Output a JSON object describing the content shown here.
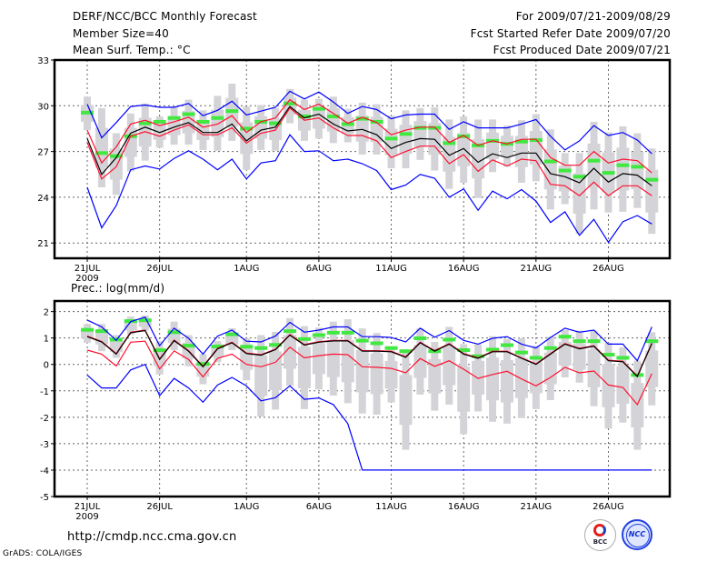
{
  "header": {
    "title": "DERF/NCC/BCC Monthly Forecast",
    "member_size": "Member Size=40",
    "period": "For 2009/07/21-2009/08/29",
    "started": "Fcst Started Refer Date 2009/07/20",
    "produced": "Fcst Produced Date 2009/07/21"
  },
  "footer": {
    "url": "http://cmdp.ncc.cma.gov.cn",
    "grads": "GrADS: COLA/IGES",
    "logo_left": "BCC",
    "logo_right": "NCC"
  },
  "colors": {
    "mean": "#000000",
    "spread": "#ff1030",
    "extreme": "#0000ff",
    "marker": "#40e840",
    "range": "#d4d4d8"
  },
  "chart_data": [
    {
      "type": "line",
      "title": "Mean Surf. Temp.: °C",
      "ylim": [
        20,
        33
      ],
      "yticks": [
        21,
        24,
        27,
        30,
        33
      ],
      "xticks": [
        {
          "day": 0,
          "label": "21JUL"
        },
        {
          "day": 5,
          "label": "26JUL"
        },
        {
          "day": 11,
          "label": "1AUG"
        },
        {
          "day": 16,
          "label": "6AUG"
        },
        {
          "day": 21,
          "label": "11AUG"
        },
        {
          "day": 26,
          "label": "16AUG"
        },
        {
          "day": 31,
          "label": "21AUG"
        },
        {
          "day": 36,
          "label": "26AUG"
        }
      ],
      "year_label": "2009",
      "grid": true,
      "n_days": 40,
      "series": [
        {
          "name": "mean",
          "color": "#000000",
          "values": [
            27.85,
            25.5,
            26.6,
            28.2,
            28.6,
            28.25,
            28.6,
            28.9,
            28.25,
            28.25,
            28.8,
            27.7,
            28.4,
            28.6,
            29.95,
            29.2,
            29.45,
            28.8,
            28.35,
            28.45,
            28.1,
            27.2,
            27.6,
            27.85,
            27.8,
            26.75,
            27.2,
            26.3,
            26.85,
            26.6,
            26.9,
            26.9,
            25.55,
            25.35,
            24.95,
            25.9,
            25.0,
            25.55,
            25.45,
            24.75
          ]
        },
        {
          "name": "upper",
          "color": "#ff1030",
          "values": [
            28.4,
            26.25,
            27.3,
            28.8,
            29.05,
            28.7,
            28.95,
            29.25,
            28.6,
            28.8,
            29.35,
            28.25,
            28.95,
            29.2,
            30.4,
            29.75,
            30.1,
            29.5,
            28.85,
            29.25,
            28.9,
            28.1,
            28.4,
            28.6,
            28.6,
            27.6,
            28.05,
            27.4,
            27.7,
            27.5,
            27.8,
            27.8,
            26.6,
            26.1,
            26.1,
            27.0,
            26.25,
            26.5,
            26.4,
            25.6
          ]
        },
        {
          "name": "lower",
          "color": "#ff1030",
          "values": [
            27.6,
            25.2,
            26.0,
            28.0,
            28.3,
            28.0,
            28.4,
            28.75,
            28.1,
            28.1,
            28.55,
            27.55,
            28.2,
            28.4,
            29.85,
            29.05,
            29.2,
            28.55,
            28.05,
            28.05,
            27.7,
            26.6,
            27.0,
            27.35,
            27.35,
            26.2,
            26.8,
            25.7,
            26.45,
            26.05,
            26.5,
            26.4,
            24.85,
            24.75,
            24.1,
            25.0,
            24.1,
            24.75,
            24.75,
            24.1
          ]
        },
        {
          "name": "max",
          "color": "#0000ff",
          "values": [
            30.1,
            27.9,
            28.9,
            29.95,
            30.05,
            29.9,
            29.9,
            30.15,
            29.35,
            29.7,
            30.3,
            29.4,
            29.65,
            29.9,
            30.95,
            30.45,
            30.9,
            30.25,
            29.5,
            29.95,
            29.75,
            29.15,
            29.4,
            29.45,
            29.45,
            28.45,
            28.95,
            28.55,
            28.55,
            28.55,
            28.8,
            29.1,
            28.0,
            27.1,
            27.7,
            28.7,
            28.05,
            28.25,
            27.75,
            26.85
          ]
        },
        {
          "name": "min",
          "color": "#0000ff",
          "values": [
            24.65,
            22.0,
            23.45,
            25.8,
            26.05,
            25.85,
            26.55,
            27.05,
            26.5,
            25.8,
            26.5,
            25.2,
            26.25,
            26.4,
            28.1,
            27.0,
            27.05,
            26.4,
            26.5,
            26.2,
            25.75,
            24.5,
            24.8,
            25.5,
            25.25,
            24.0,
            24.55,
            23.15,
            24.4,
            23.9,
            24.5,
            23.75,
            22.35,
            23.05,
            21.5,
            22.55,
            21.05,
            22.4,
            22.8,
            22.25
          ]
        }
      ],
      "markers": [
        29.55,
        26.9,
        26.7,
        28.0,
        28.85,
        28.95,
        29.2,
        29.45,
        28.95,
        29.2,
        29.65,
        28.5,
        28.95,
        28.85,
        30.15,
        29.3,
        29.8,
        29.3,
        28.8,
        29.15,
        28.95,
        27.85,
        28.15,
        28.55,
        28.55,
        27.55,
        28.0,
        27.4,
        27.7,
        27.5,
        27.65,
        27.75,
        26.35,
        25.75,
        25.35,
        26.4,
        25.6,
        26.1,
        26.0,
        25.15
      ],
      "range_high": [
        30.6,
        29.85,
        28.2,
        29.5,
        30.15,
        29.3,
        29.95,
        30.4,
        29.7,
        30.65,
        31.45,
        29.95,
        30.05,
        29.85,
        31.1,
        30.4,
        30.45,
        30.6,
        29.8,
        30.2,
        30.1,
        29.35,
        29.7,
        29.85,
        29.9,
        29.1,
        29.3,
        29.1,
        29.1,
        28.7,
        29.05,
        29.45,
        28.45,
        26.9,
        26.9,
        28.95,
        28.25,
        28.65,
        28.2,
        27.2
      ],
      "range_low": [
        28.4,
        24.65,
        24.15,
        25.7,
        26.4,
        27.25,
        27.45,
        27.45,
        27.1,
        27.05,
        27.7,
        25.8,
        27.1,
        27.05,
        28.85,
        27.7,
        27.85,
        27.55,
        27.6,
        26.8,
        26.8,
        25.9,
        25.9,
        26.45,
        25.75,
        24.55,
        24.95,
        23.95,
        25.65,
        26.0,
        24.95,
        25.05,
        23.2,
        23.55,
        21.6,
        23.2,
        23.0,
        23.05,
        23.3,
        21.6
      ]
    },
    {
      "type": "line",
      "title": "Prec.: log(mm/d)",
      "ylim": [
        -5,
        2.4
      ],
      "yticks": [
        -5,
        -4,
        -3,
        -2,
        -1,
        0,
        1,
        2
      ],
      "xticks": [
        {
          "day": 0,
          "label": "21JUL"
        },
        {
          "day": 5,
          "label": "26JUL"
        },
        {
          "day": 11,
          "label": "1AUG"
        },
        {
          "day": 16,
          "label": "6AUG"
        },
        {
          "day": 21,
          "label": "11AUG"
        },
        {
          "day": 26,
          "label": "16AUG"
        },
        {
          "day": 31,
          "label": "21AUG"
        },
        {
          "day": 36,
          "label": "26AUG"
        }
      ],
      "year_label": "2009",
      "grid": true,
      "n_days": 40,
      "series": [
        {
          "name": "upper",
          "color": "#ff1030",
          "values": [
            1.07,
            0.87,
            0.41,
            1.22,
            1.3,
            0.21,
            0.92,
            0.52,
            -0.07,
            0.61,
            0.84,
            0.43,
            0.37,
            0.58,
            1.13,
            0.75,
            0.86,
            0.91,
            0.91,
            0.52,
            0.52,
            0.5,
            0.29,
            0.84,
            0.52,
            0.79,
            0.41,
            0.25,
            0.5,
            0.5,
            0.25,
            0.02,
            0.41,
            0.79,
            0.61,
            0.71,
            0.16,
            0.12,
            -0.44,
            0.81
          ]
        },
        {
          "name": "mean",
          "color": "#000000",
          "values": [
            1.05,
            0.85,
            0.39,
            1.2,
            1.28,
            0.19,
            0.9,
            0.5,
            -0.09,
            0.59,
            0.82,
            0.41,
            0.35,
            0.56,
            1.11,
            0.73,
            0.84,
            0.89,
            0.89,
            0.5,
            0.5,
            0.48,
            0.27,
            0.82,
            0.5,
            0.77,
            0.39,
            0.23,
            0.48,
            0.48,
            0.23,
            0.0,
            0.39,
            0.77,
            0.59,
            0.69,
            0.14,
            0.1,
            -0.46,
            0.79
          ]
        },
        {
          "name": "lower",
          "color": "#ff1030",
          "values": [
            0.54,
            0.39,
            -0.06,
            0.84,
            0.88,
            -0.17,
            0.51,
            0.19,
            -0.47,
            0.23,
            0.39,
            0.0,
            -0.09,
            0.08,
            0.65,
            0.25,
            0.33,
            0.39,
            0.37,
            -0.09,
            -0.11,
            -0.15,
            -0.32,
            0.22,
            -0.07,
            0.14,
            -0.18,
            -0.53,
            -0.38,
            -0.26,
            -0.55,
            -0.81,
            -0.49,
            -0.11,
            -0.32,
            -0.25,
            -0.78,
            -0.87,
            -1.52,
            -0.35
          ]
        },
        {
          "name": "max",
          "color": "#0000ff",
          "values": [
            1.68,
            1.42,
            0.91,
            1.62,
            1.79,
            0.71,
            1.37,
            0.99,
            0.39,
            1.07,
            1.3,
            0.88,
            0.85,
            1.07,
            1.59,
            1.22,
            1.3,
            1.42,
            1.42,
            1.05,
            1.05,
            1.02,
            0.85,
            1.37,
            1.03,
            1.28,
            0.91,
            0.77,
            0.99,
            1.05,
            0.77,
            0.62,
            1.02,
            1.37,
            1.22,
            1.3,
            0.77,
            0.77,
            0.14,
            1.42
          ]
        },
        {
          "name": "min",
          "color": "#0000ff",
          "values": [
            -0.4,
            -0.89,
            -0.89,
            -0.21,
            0.0,
            -1.18,
            -0.53,
            -0.89,
            -1.43,
            -0.78,
            -0.49,
            -0.81,
            -1.38,
            -1.26,
            -0.81,
            -1.32,
            -1.27,
            -1.52,
            -2.24,
            -4,
            -4,
            -4,
            -4,
            -4,
            -4,
            -4,
            -4,
            -4,
            -4,
            -4,
            -4,
            -4,
            -4,
            -4,
            -4,
            -4,
            -4,
            -4,
            -4,
            -4
          ]
        }
      ],
      "markers": [
        1.31,
        1.26,
        0.94,
        1.64,
        1.67,
        0.54,
        1.22,
        0.71,
        0.02,
        0.68,
        1.14,
        0.67,
        0.62,
        0.74,
        1.26,
        0.96,
        1.11,
        1.2,
        1.2,
        0.9,
        0.8,
        0.62,
        0.5,
        0.99,
        0.5,
        0.94,
        0.54,
        0.31,
        0.56,
        0.73,
        0.45,
        0.25,
        0.62,
        1.05,
        0.88,
        0.88,
        0.37,
        0.25,
        -0.4,
        0.88
      ],
      "range_high": [
        1.53,
        1.53,
        1.11,
        1.81,
        1.85,
        0.88,
        1.62,
        1.11,
        0.39,
        0.88,
        1.37,
        0.99,
        1.11,
        1.23,
        1.75,
        1.45,
        1.39,
        1.62,
        1.71,
        1.36,
        1.19,
        0.65,
        0.54,
        1.37,
        0.85,
        1.42,
        0.77,
        0.77,
        1.07,
        0.96,
        1.0,
        0.71,
        1.05,
        1.3,
        1.28,
        1.28,
        0.82,
        0.65,
        0.14,
        1.22
      ],
      "range_low": [
        0.82,
        0.5,
        0.25,
        1.12,
        1.28,
        -0.38,
        0.54,
        -0.07,
        -0.75,
        0.08,
        0.54,
        -0.6,
        -1.97,
        -1.71,
        -0.8,
        -1.69,
        -0.95,
        -1.18,
        -1.47,
        -1.86,
        -1.9,
        -1.44,
        -3.23,
        -1.14,
        -1.75,
        -1.52,
        -2.64,
        -1.78,
        -2.17,
        -2.24,
        -2.03,
        -1.69,
        -1.35,
        -0.49,
        -0.69,
        -1.58,
        -2.43,
        -2.2,
        -3.23,
        -1.55
      ]
    }
  ]
}
